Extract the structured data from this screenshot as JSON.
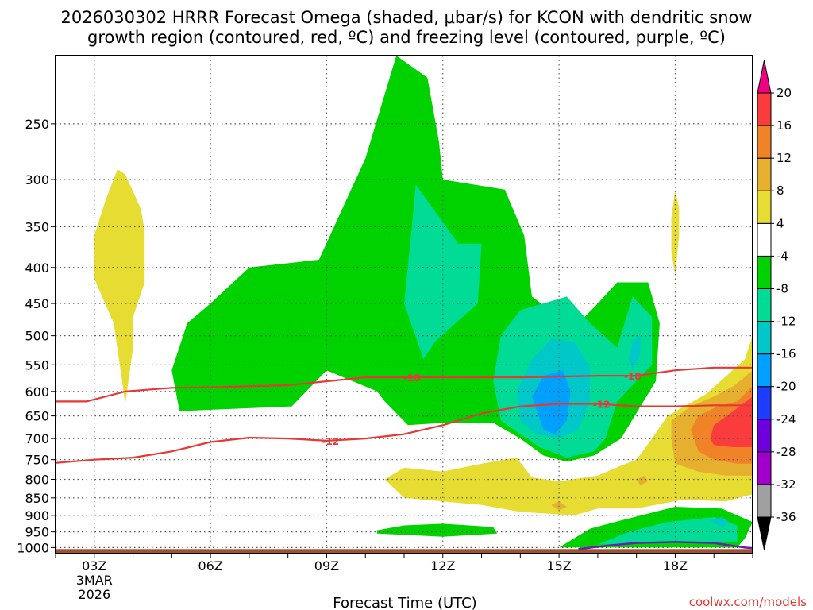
{
  "title_line1": "2026030302 HRRR Forecast Omega (shaded, μbar/s) for KCON with dendritic snow",
  "title_line2": "growth region (contoured, red, ºC) and freezing level (contoured, purple, ºC)",
  "credit": "coolwx.com/models",
  "chart_data": {
    "type": "heatmap",
    "title": "2026030302 HRRR Forecast Omega (shaded, μbar/s) for KCON with dendritic snow growth region (contoured, red, ºC) and freezing level (contoured, purple, ºC)",
    "xlabel": "Forecast Time (UTC)",
    "ylabel": "",
    "x_range_hours": [
      2,
      20
    ],
    "y_range_hPa": [
      1020,
      200
    ],
    "y_scale": "log-pressure",
    "grid": true,
    "x_ticks": [
      {
        "hour": 3,
        "label": "03Z",
        "sub1": "3MAR",
        "sub2": "2026"
      },
      {
        "hour": 6,
        "label": "06Z"
      },
      {
        "hour": 9,
        "label": "09Z"
      },
      {
        "hour": 12,
        "label": "12Z"
      },
      {
        "hour": 15,
        "label": "15Z"
      },
      {
        "hour": 18,
        "label": "18Z"
      }
    ],
    "y_ticks": [
      250,
      300,
      350,
      400,
      450,
      500,
      550,
      600,
      650,
      700,
      750,
      800,
      850,
      900,
      950,
      1000
    ],
    "colorbar": {
      "levels": [
        -36,
        -32,
        -28,
        -24,
        -20,
        -16,
        -12,
        -8,
        -4,
        4,
        8,
        12,
        16,
        20
      ],
      "labels": [
        "-36",
        "-32",
        "-28",
        "-24",
        "-20",
        "-16",
        "-12",
        "-8",
        "-4",
        "4",
        "8",
        "12",
        "16",
        "20"
      ],
      "colors": [
        "#000000",
        "#a0a0a0",
        "#a000c8",
        "#6e00dc",
        "#1e3cff",
        "#00a0ff",
        "#00c8c8",
        "#00dc96",
        "#00d200",
        "#ffffff",
        "#e6dc32",
        "#e6af2d",
        "#f08228",
        "#fa3c3c",
        "#f00082"
      ]
    },
    "omega_regions": [
      {
        "name": "upward-motion",
        "level": -4,
        "color": "#00d200",
        "polygon": [
          [
            5.2,
            640
          ],
          [
            5.0,
            560
          ],
          [
            5.4,
            480
          ],
          [
            6.0,
            450
          ],
          [
            7.0,
            400
          ],
          [
            8.8,
            390
          ],
          [
            10.0,
            280
          ],
          [
            10.8,
            200
          ],
          [
            11.6,
            215
          ],
          [
            11.9,
            265
          ],
          [
            12.0,
            300
          ],
          [
            13.6,
            310
          ],
          [
            14.1,
            360
          ],
          [
            14.3,
            440
          ],
          [
            15.0,
            470
          ],
          [
            15.5,
            480
          ],
          [
            16.0,
            450
          ],
          [
            16.5,
            420
          ],
          [
            17.3,
            420
          ],
          [
            17.6,
            480
          ],
          [
            17.5,
            580
          ],
          [
            16.6,
            700
          ],
          [
            15.9,
            740
          ],
          [
            15.2,
            755
          ],
          [
            14.6,
            740
          ],
          [
            14.0,
            700
          ],
          [
            13.3,
            665
          ],
          [
            12.0,
            665
          ],
          [
            11.1,
            670
          ],
          [
            10.5,
            620
          ],
          [
            10.3,
            600
          ],
          [
            9.0,
            560
          ],
          [
            8.1,
            630
          ],
          [
            5.2,
            640
          ]
        ]
      },
      {
        "name": "upward-motion-low",
        "level": -4,
        "color": "#00d200",
        "polygon": [
          [
            10.3,
            945
          ],
          [
            11.0,
            930
          ],
          [
            12.0,
            925
          ],
          [
            13.3,
            935
          ],
          [
            13.4,
            955
          ],
          [
            12.0,
            965
          ],
          [
            10.3,
            955
          ],
          [
            10.3,
            945
          ]
        ]
      },
      {
        "name": "upward-motion-surface",
        "level": -4,
        "color": "#00d200",
        "polygon": [
          [
            15.0,
            1000
          ],
          [
            15.8,
            940
          ],
          [
            16.6,
            915
          ],
          [
            18.0,
            875
          ],
          [
            19.2,
            880
          ],
          [
            20.0,
            920
          ],
          [
            19.8,
            970
          ],
          [
            19.6,
            1000
          ],
          [
            15.0,
            1000
          ]
        ]
      },
      {
        "name": "moderate-upward",
        "level": -8,
        "color": "#00dc96",
        "polygon": [
          [
            11.0,
            450
          ],
          [
            11.2,
            350
          ],
          [
            11.3,
            305
          ],
          [
            12.4,
            370
          ],
          [
            13.0,
            370
          ],
          [
            12.9,
            450
          ],
          [
            11.8,
            510
          ],
          [
            11.5,
            540
          ],
          [
            11.0,
            450
          ]
        ]
      },
      {
        "name": "moderate-upward-2",
        "level": -8,
        "color": "#00dc96",
        "polygon": [
          [
            13.3,
            580
          ],
          [
            13.5,
            500
          ],
          [
            14.0,
            460
          ],
          [
            15.2,
            440
          ],
          [
            15.8,
            480
          ],
          [
            16.5,
            520
          ],
          [
            16.9,
            440
          ],
          [
            17.4,
            470
          ],
          [
            17.4,
            550
          ],
          [
            16.5,
            620
          ],
          [
            16.2,
            700
          ],
          [
            15.9,
            730
          ],
          [
            15.2,
            745
          ],
          [
            14.5,
            720
          ],
          [
            14.0,
            690
          ],
          [
            13.5,
            660
          ],
          [
            13.3,
            580
          ]
        ]
      },
      {
        "name": "moderate-upward-low",
        "level": -8,
        "color": "#00dc96",
        "polygon": [
          [
            16.0,
            990
          ],
          [
            16.8,
            950
          ],
          [
            17.8,
            920
          ],
          [
            19.0,
            905
          ],
          [
            19.6,
            930
          ],
          [
            19.6,
            980
          ],
          [
            16.0,
            990
          ]
        ]
      },
      {
        "name": "strong-upward",
        "level": -12,
        "color": "#00c8c8",
        "polygon": [
          [
            13.9,
            600
          ],
          [
            14.3,
            540
          ],
          [
            14.8,
            505
          ],
          [
            15.4,
            510
          ],
          [
            15.8,
            555
          ],
          [
            15.8,
            620
          ],
          [
            15.5,
            680
          ],
          [
            15.0,
            700
          ],
          [
            14.4,
            690
          ],
          [
            14.0,
            660
          ],
          [
            13.9,
            600
          ]
        ]
      },
      {
        "name": "strong-upward-2",
        "level": -12,
        "color": "#00c8c8",
        "polygon": [
          [
            16.8,
            540
          ],
          [
            16.9,
            510
          ],
          [
            17.1,
            500
          ],
          [
            17.1,
            530
          ],
          [
            16.9,
            560
          ],
          [
            16.8,
            540
          ]
        ]
      },
      {
        "name": "strong-upward-low",
        "level": -12,
        "color": "#00c8c8",
        "polygon": [
          [
            18.9,
            915
          ],
          [
            19.2,
            905
          ],
          [
            19.4,
            920
          ],
          [
            19.2,
            935
          ],
          [
            18.9,
            915
          ]
        ]
      },
      {
        "name": "very-strong-upward",
        "level": -16,
        "color": "#00a0ff",
        "polygon": [
          [
            14.3,
            610
          ],
          [
            14.6,
            570
          ],
          [
            15.1,
            560
          ],
          [
            15.3,
            600
          ],
          [
            15.2,
            660
          ],
          [
            14.9,
            690
          ],
          [
            14.6,
            680
          ],
          [
            14.3,
            610
          ]
        ]
      },
      {
        "name": "sinking-left",
        "level": 4,
        "color": "#e6dc32",
        "polygon": [
          [
            3.0,
            415
          ],
          [
            3.0,
            360
          ],
          [
            3.3,
            320
          ],
          [
            3.6,
            290
          ],
          [
            3.8,
            295
          ],
          [
            4.2,
            330
          ],
          [
            4.3,
            355
          ],
          [
            4.3,
            420
          ],
          [
            4.0,
            470
          ],
          [
            4.0,
            520
          ],
          [
            3.9,
            570
          ],
          [
            3.8,
            625
          ],
          [
            3.7,
            570
          ],
          [
            3.5,
            480
          ],
          [
            3.0,
            415
          ]
        ]
      },
      {
        "name": "sinking-right-upper",
        "level": 4,
        "color": "#e6dc32",
        "polygon": [
          [
            17.9,
            340
          ],
          [
            18.0,
            310
          ],
          [
            18.1,
            330
          ],
          [
            18.1,
            360
          ],
          [
            18.0,
            410
          ],
          [
            17.9,
            380
          ],
          [
            17.9,
            340
          ]
        ]
      },
      {
        "name": "sinking-lower",
        "level": 4,
        "color": "#e6dc32",
        "polygon": [
          [
            10.5,
            800
          ],
          [
            11.0,
            770
          ],
          [
            12.0,
            780
          ],
          [
            13.0,
            760
          ],
          [
            13.9,
            745
          ],
          [
            14.3,
            795
          ],
          [
            15.0,
            805
          ],
          [
            16.0,
            790
          ],
          [
            16.6,
            765
          ],
          [
            17.0,
            750
          ],
          [
            17.4,
            700
          ],
          [
            17.8,
            650
          ],
          [
            18.8,
            605
          ],
          [
            19.8,
            540
          ],
          [
            20.0,
            500
          ],
          [
            20.0,
            840
          ],
          [
            19.3,
            860
          ],
          [
            18.2,
            855
          ],
          [
            17.0,
            880
          ],
          [
            16.0,
            880
          ],
          [
            15.4,
            900
          ],
          [
            14.0,
            890
          ],
          [
            13.0,
            870
          ],
          [
            11.0,
            850
          ],
          [
            10.5,
            800
          ]
        ]
      },
      {
        "name": "sinking-moderate",
        "level": 8,
        "color": "#e6af2d",
        "polygon": [
          [
            17.0,
            800
          ],
          [
            17.2,
            790
          ],
          [
            17.3,
            805
          ],
          [
            17.1,
            815
          ],
          [
            17.0,
            800
          ]
        ]
      },
      {
        "name": "sinking-moderate-2",
        "level": 8,
        "color": "#e6af2d",
        "polygon": [
          [
            14.8,
            870
          ],
          [
            15.0,
            860
          ],
          [
            15.2,
            875
          ],
          [
            15.0,
            885
          ],
          [
            14.8,
            870
          ]
        ]
      },
      {
        "name": "sinking-moderate-3",
        "level": 8,
        "color": "#e6af2d",
        "polygon": [
          [
            17.9,
            660
          ],
          [
            18.4,
            630
          ],
          [
            19.0,
            610
          ],
          [
            19.5,
            590
          ],
          [
            20.0,
            560
          ],
          [
            20.0,
            790
          ],
          [
            19.3,
            790
          ],
          [
            18.6,
            780
          ],
          [
            18.0,
            760
          ],
          [
            17.9,
            700
          ],
          [
            17.9,
            660
          ]
        ]
      },
      {
        "name": "sinking-strong",
        "level": 12,
        "color": "#f08228",
        "polygon": [
          [
            18.4,
            680
          ],
          [
            18.6,
            650
          ],
          [
            19.1,
            630
          ],
          [
            19.6,
            620
          ],
          [
            20.0,
            590
          ],
          [
            20.0,
            760
          ],
          [
            19.6,
            760
          ],
          [
            19.0,
            750
          ],
          [
            18.6,
            730
          ],
          [
            18.4,
            680
          ]
        ]
      },
      {
        "name": "sinking-very-strong",
        "level": 16,
        "color": "#fa3c3c",
        "polygon": [
          [
            18.9,
            700
          ],
          [
            19.0,
            670
          ],
          [
            19.5,
            640
          ],
          [
            20.0,
            610
          ],
          [
            20.0,
            720
          ],
          [
            19.5,
            720
          ],
          [
            19.0,
            715
          ],
          [
            18.9,
            700
          ]
        ]
      }
    ],
    "dgz_contours": [
      {
        "label": "-18",
        "color": "#e53935",
        "points": [
          [
            2.0,
            620
          ],
          [
            2.8,
            620
          ],
          [
            3.8,
            600
          ],
          [
            5.0,
            593
          ],
          [
            6.0,
            592
          ],
          [
            8.0,
            588
          ],
          [
            10.0,
            573
          ],
          [
            12.0,
            573
          ],
          [
            14.0,
            573
          ],
          [
            16.0,
            570
          ],
          [
            17.0,
            570
          ],
          [
            18.0,
            560
          ],
          [
            19.0,
            555
          ],
          [
            20.0,
            555
          ]
        ]
      },
      {
        "label": "-12",
        "color": "#e53935",
        "points": [
          [
            2.0,
            758
          ],
          [
            3.0,
            750
          ],
          [
            4.0,
            745
          ],
          [
            5.0,
            730
          ],
          [
            6.0,
            708
          ],
          [
            7.0,
            698
          ],
          [
            8.0,
            700
          ],
          [
            9.0,
            705
          ],
          [
            10.0,
            700
          ],
          [
            11.0,
            690
          ],
          [
            12.0,
            670
          ],
          [
            13.0,
            645
          ],
          [
            14.0,
            630
          ],
          [
            15.0,
            625
          ],
          [
            16.0,
            625
          ],
          [
            17.0,
            630
          ],
          [
            18.0,
            630
          ],
          [
            19.0,
            628
          ],
          [
            20.0,
            628
          ]
        ]
      }
    ],
    "contour_labels": [
      {
        "text": "-18",
        "hour": 11.2,
        "hPa": 573
      },
      {
        "text": "-18",
        "hour": 16.9,
        "hPa": 570
      },
      {
        "text": "-12",
        "hour": 9.1,
        "hPa": 705
      },
      {
        "text": "-12",
        "hour": 16.1,
        "hPa": 625
      }
    ],
    "freezing_level": {
      "label": "0",
      "color": "#6a1fb0",
      "points": [
        [
          15.5,
          1005
        ],
        [
          16.3,
          993
        ],
        [
          17.0,
          985
        ],
        [
          18.0,
          982
        ],
        [
          19.0,
          985
        ],
        [
          19.8,
          1000
        ],
        [
          20.0,
          1002
        ]
      ]
    },
    "surface_fill_color": "#a0522d"
  }
}
